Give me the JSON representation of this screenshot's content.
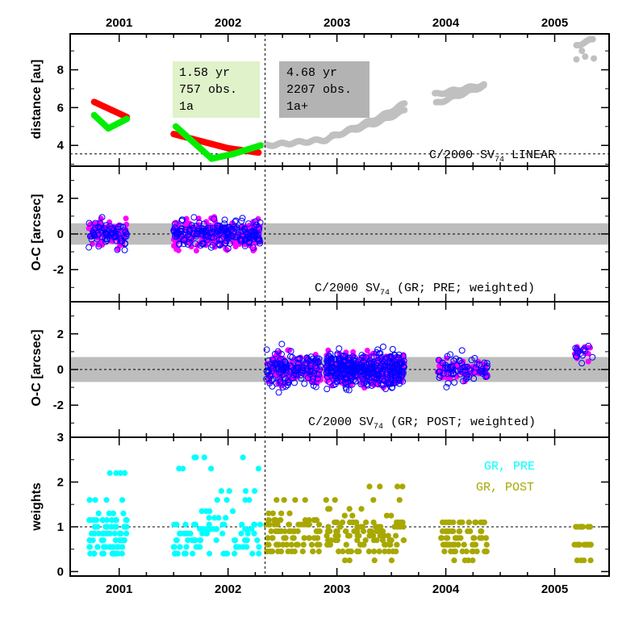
{
  "chart_data": {
    "type": "scatter",
    "title": "C/2000 SV74 LINEAR",
    "x_axis": {
      "label": "",
      "range": [
        2000.55,
        2005.5
      ],
      "tick_labels": [
        "2001",
        "2002",
        "2003",
        "2004",
        "2005"
      ],
      "tick_values": [
        2001.0,
        2002.0,
        2003.0,
        2004.0,
        2005.0
      ]
    },
    "perihelion_epoch": 2002.34,
    "panels": [
      {
        "id": "distance",
        "ylabel": "distance [au]",
        "ylim": [
          2.9,
          9.9
        ],
        "yticks": [
          4,
          6,
          8
        ],
        "reference_line_y": 3.55,
        "label_main": "C/2000 SV",
        "label_sub": "74",
        "label_rest": " LINEAR",
        "boxes": [
          {
            "id": "pre",
            "color": "#dff2c9",
            "lines": [
              "1.58 yr",
              "757 obs.",
              "1a"
            ]
          },
          {
            "id": "post",
            "color": "#b3b3b3",
            "lines": [
              "4.68 yr",
              "2207 obs.",
              "1a+"
            ]
          }
        ],
        "series": [
          {
            "name": "heliocentric distance (pre, fitted)",
            "color": "#ff0000",
            "points": [
              [
                2000.77,
                6.3
              ],
              [
                2001.07,
                5.5
              ],
              [
                2001.5,
                4.6
              ],
              [
                2002.0,
                3.85
              ],
              [
                2002.28,
                3.62
              ]
            ]
          },
          {
            "name": "geocentric distance (pre, fitted)",
            "color": "#00ee00",
            "points": [
              [
                2000.77,
                5.6
              ],
              [
                2000.9,
                4.9
              ],
              [
                2001.07,
                5.4
              ],
              [
                2001.52,
                5.0
              ],
              [
                2001.85,
                3.3
              ],
              [
                2002.05,
                3.55
              ],
              [
                2002.3,
                4.0
              ]
            ]
          },
          {
            "name": "distance (post, unfitted)",
            "color": "#c0c0c0",
            "points": [
              [
                2002.35,
                4.0
              ],
              [
                2002.9,
                4.3
              ],
              [
                2003.4,
                5.5
              ],
              [
                2003.62,
                6.2
              ],
              [
                2003.9,
                6.7
              ],
              [
                2004.35,
                7.2
              ],
              [
                2005.2,
                9.3
              ],
              [
                2005.35,
                9.6
              ]
            ]
          }
        ]
      },
      {
        "id": "oc_pre",
        "ylabel": "O-C [arcsec]",
        "ylim": [
          -3.8,
          3.8
        ],
        "yticks": [
          -2,
          0,
          2
        ],
        "band": [
          -0.6,
          0.6
        ],
        "label_main": "C/2000 SV",
        "label_sub": "74",
        "label_rest": "  (GR; PRE; weighted)",
        "clusters": [
          {
            "x_range": [
              2000.72,
              2001.07
            ],
            "color": "#ff00ff",
            "style": "filled",
            "y_spread": 0.7
          },
          {
            "x_range": [
              2001.5,
              2002.3
            ],
            "color": "#ff00ff",
            "style": "filled",
            "y_spread": 0.75
          },
          {
            "x_range": [
              2000.72,
              2001.07
            ],
            "color": "#0000ff",
            "style": "open",
            "y_spread": 0.65
          },
          {
            "x_range": [
              2001.5,
              2002.3
            ],
            "color": "#0000ff",
            "style": "open",
            "y_spread": 0.7
          }
        ]
      },
      {
        "id": "oc_post",
        "ylabel": "O-C [arcsec]",
        "ylim": [
          -3.8,
          3.8
        ],
        "yticks": [
          -2,
          0,
          2
        ],
        "band": [
          -0.7,
          0.7
        ],
        "label_main": "C/2000 SV",
        "label_sub": "74",
        "label_rest": "  (GR; POST; weighted)",
        "clusters": [
          {
            "x_range": [
              2002.35,
              2002.85
            ],
            "color": "#ff00ff",
            "style": "filled",
            "y_spread": 0.8
          },
          {
            "x_range": [
              2002.9,
              2003.62
            ],
            "color": "#ff00ff",
            "style": "filled",
            "y_spread": 0.8
          },
          {
            "x_range": [
              2003.92,
              2004.38
            ],
            "color": "#ff00ff",
            "style": "filled",
            "y_spread": 0.6
          },
          {
            "x_range": [
              2005.18,
              2005.35
            ],
            "color": "#ff00ff",
            "style": "filled",
            "y_spread": 0.4
          },
          {
            "x_range": [
              2002.35,
              2002.85
            ],
            "color": "#0000ff",
            "style": "open",
            "y_spread": 0.9
          },
          {
            "x_range": [
              2002.9,
              2003.62
            ],
            "color": "#0000ff",
            "style": "open",
            "y_spread": 0.85
          },
          {
            "x_range": [
              2003.92,
              2004.38
            ],
            "color": "#0000ff",
            "style": "open",
            "y_spread": 0.7
          },
          {
            "x_range": [
              2005.18,
              2005.35
            ],
            "color": "#0000ff",
            "style": "open",
            "y_spread": 0.5
          }
        ]
      },
      {
        "id": "weights",
        "ylabel": "weights",
        "ylim": [
          -0.1,
          3.0
        ],
        "yticks": [
          0,
          1,
          2,
          3
        ],
        "reference_line_y": 1.0,
        "legend": [
          {
            "label": "GR, PRE",
            "color": "#00ffff"
          },
          {
            "label": "GR, POST",
            "color": "#a8a800"
          }
        ],
        "clusters": [
          {
            "series": "GR, PRE",
            "color": "#00ffff",
            "x_range": [
              2000.72,
              2001.07
            ],
            "y_levels": [
              0.4,
              0.55,
              0.7,
              0.85,
              1.0,
              1.15,
              1.3,
              1.6,
              2.2
            ]
          },
          {
            "series": "GR, PRE",
            "color": "#00ffff",
            "x_range": [
              2001.5,
              2002.3
            ],
            "y_levels": [
              0.4,
              0.55,
              0.7,
              0.85,
              0.95,
              1.05,
              1.2,
              1.35,
              1.6,
              1.8,
              2.3,
              2.55
            ]
          },
          {
            "series": "GR, POST",
            "color": "#a8a800",
            "x_range": [
              2002.35,
              2002.85
            ],
            "y_levels": [
              0.45,
              0.6,
              0.75,
              0.9,
              1.05,
              1.15,
              1.3,
              1.6
            ]
          },
          {
            "series": "GR, POST",
            "color": "#a8a800",
            "x_range": [
              2002.9,
              2003.62
            ],
            "y_levels": [
              0.25,
              0.45,
              0.6,
              0.7,
              0.8,
              0.9,
              1.0,
              1.1,
              1.25,
              1.4,
              1.6,
              1.9
            ]
          },
          {
            "series": "GR, POST",
            "color": "#a8a800",
            "x_range": [
              2003.92,
              2004.38
            ],
            "y_levels": [
              0.25,
              0.45,
              0.6,
              0.75,
              0.9,
              1.1
            ]
          },
          {
            "series": "GR, POST",
            "color": "#a8a800",
            "x_range": [
              2005.18,
              2005.35
            ],
            "y_levels": [
              0.25,
              0.6,
              1.0
            ]
          }
        ]
      }
    ]
  }
}
